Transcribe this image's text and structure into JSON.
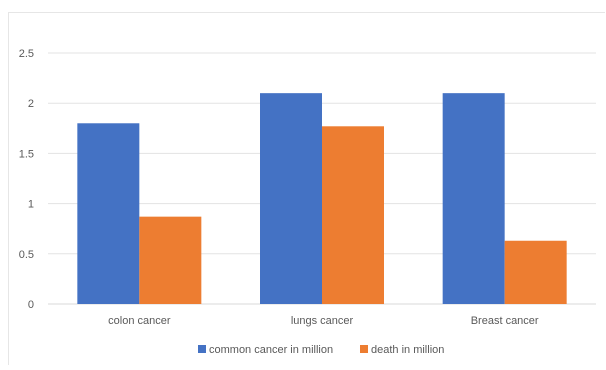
{
  "chart_data": {
    "type": "bar",
    "title": "",
    "xlabel": "",
    "ylabel": "",
    "categories": [
      "colon cancer",
      "lungs cancer",
      "Breast cancer"
    ],
    "series": [
      {
        "name": "common cancer in million",
        "color": "#4472c4",
        "values": [
          1.8,
          2.1,
          2.1
        ]
      },
      {
        "name": "death in million",
        "color": "#ed7d31",
        "values": [
          0.87,
          1.77,
          0.63
        ]
      }
    ],
    "ylim": [
      0,
      2.5
    ],
    "yticks": [
      "0",
      "0.5",
      "1",
      "1.5",
      "2",
      "2.5"
    ],
    "grid": true,
    "legend_position": "bottom"
  }
}
